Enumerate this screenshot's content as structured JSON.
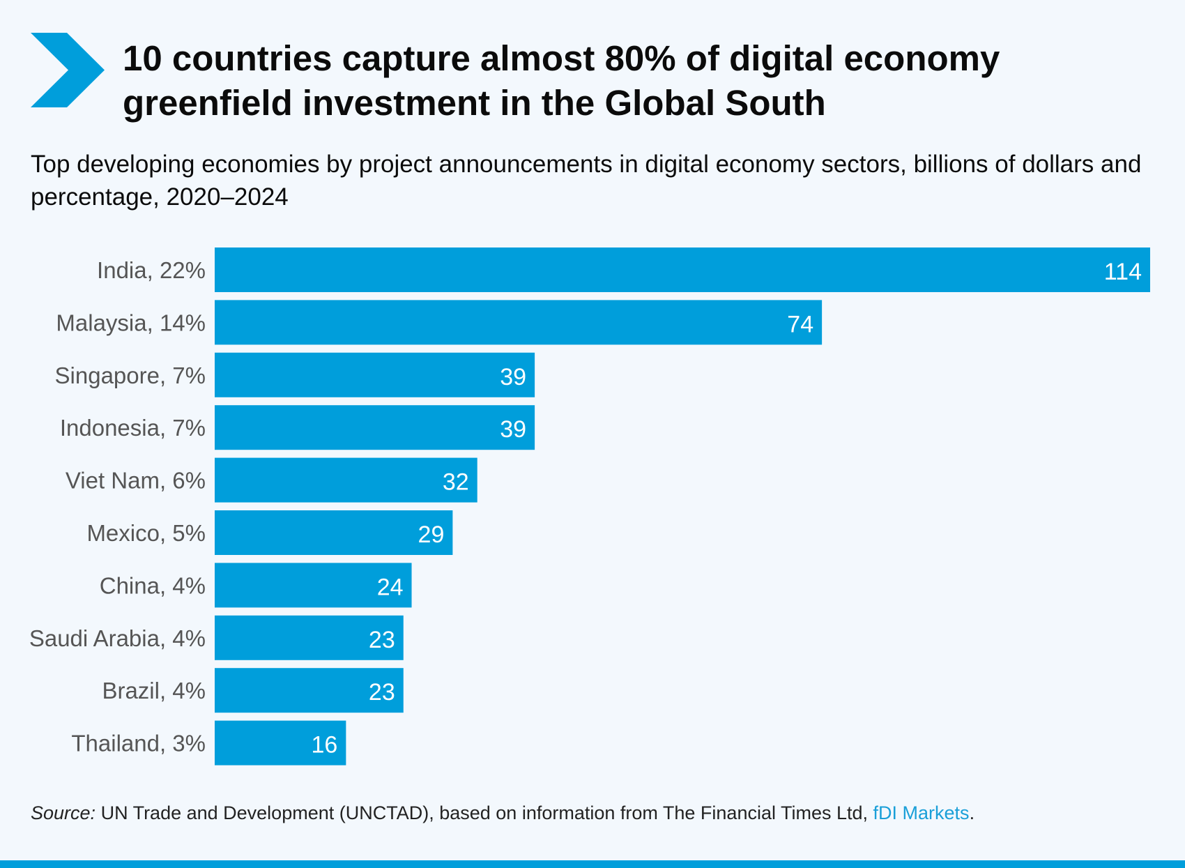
{
  "header": {
    "title": "10 countries capture almost 80% of digital economy greenfield investment in the Global South",
    "subtitle": "Top developing economies by project announcements in digital economy sectors, billions of dollars and percentage, 2020–2024"
  },
  "chart_data": {
    "type": "bar",
    "orientation": "horizontal",
    "title": "10 countries capture almost 80% of digital economy greenfield investment in the Global South",
    "subtitle": "Top developing economies by project announcements in digital economy sectors, billions of dollars and percentage, 2020–2024",
    "categories": [
      "India, 22%",
      "Malaysia, 14%",
      "Singapore, 7%",
      "Indonesia, 7%",
      "Viet Nam, 6%",
      "Mexico, 5%",
      "China, 4%",
      "Saudi Arabia, 4%",
      "Brazil, 4%",
      "Thailand, 3%"
    ],
    "values": [
      114,
      74,
      39,
      39,
      32,
      29,
      24,
      23,
      23,
      16
    ],
    "value_labels": [
      "114",
      "74",
      "39",
      "39",
      "32",
      "29",
      "24",
      "23",
      "23",
      "16"
    ],
    "xlim": [
      0,
      114
    ],
    "grid": false,
    "legend": "none",
    "xlabel": "",
    "ylabel": ""
  },
  "source": {
    "label": "Source:",
    "text": " UN Trade and Development (UNCTAD), based on information from The Financial Times Ltd, ",
    "link": "fDI Markets",
    "end": "."
  },
  "colors": {
    "accent": "#009edb",
    "background": "#f3f8fd",
    "axis_label": "#555555",
    "bar_label": "#ffffff"
  },
  "icons": {
    "header_marker": "chevron-right-icon"
  }
}
